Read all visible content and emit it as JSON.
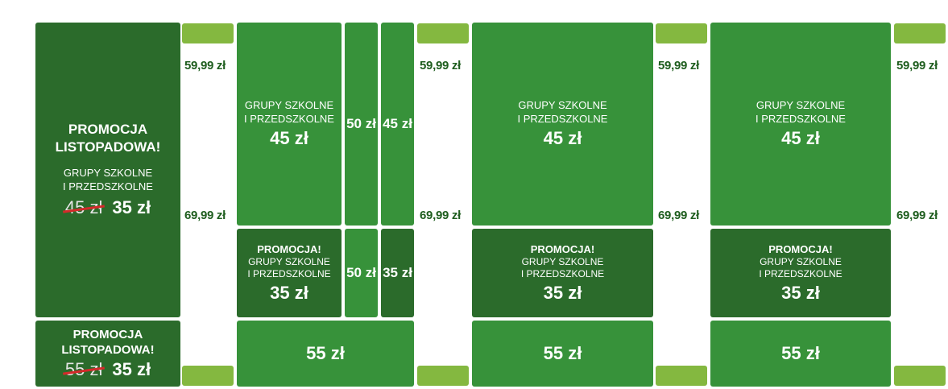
{
  "promo_panel": {
    "title_line1": "PROMOCJA",
    "title_line2": "LISTOPADOWA!",
    "group_line1": "GRUPY SZKOLNE",
    "group_line2": "I PRZEDSZKOLNE",
    "old_price": "45 zł",
    "new_price": "35 zł"
  },
  "promo_bottom": {
    "title_line1": "PROMOCJA",
    "title_line2": "LISTOPADOWA!",
    "old_price": "55 zł",
    "new_price": "35 zł"
  },
  "price_labels": {
    "upper": "59,99 zł",
    "lower": "69,99 zł"
  },
  "group_tile": {
    "line1": "GRUPY SZKOLNE",
    "line2": "I PRZEDSZKOLNE",
    "price": "45 zł"
  },
  "promo_tile": {
    "title": "PROMOCJA!",
    "line1": "GRUPY SZKOLNE",
    "line2": "I PRZEDSZKOLNE",
    "price": "35 zł"
  },
  "narrow_tiles": {
    "top_a": "50 zł",
    "top_b": "45 zł",
    "bottom_a": "50 zł",
    "bottom_b": "35 zł"
  },
  "bottom_tile_price": "55 zł",
  "colors": {
    "dark_green": "#2b6b2b",
    "mid_green": "#37923a",
    "light_green": "#84b840",
    "price_text": "#1f5e1f",
    "strike": "#d42a2a"
  }
}
